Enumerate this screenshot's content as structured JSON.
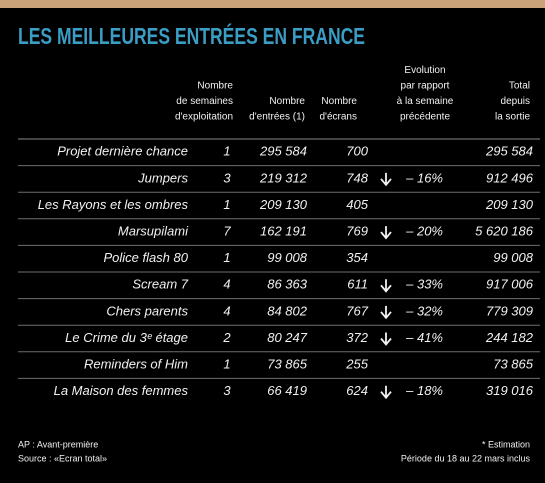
{
  "header": {
    "title": "LES MEILLEURES ENTRÉES EN FRANCE"
  },
  "table": {
    "columns": [
      [
        "Nombre",
        "de semaines",
        "d'exploitation"
      ],
      [
        "Nombre",
        "d'entrées (1)"
      ],
      [
        "Nombre",
        "d'écrans"
      ],
      [
        "Evolution",
        "par rapport",
        "à la semaine",
        "précédente"
      ],
      [
        "Total",
        "depuis",
        "la sortie"
      ]
    ],
    "rows": [
      {
        "title": "Projet dernière chance",
        "weeks": "1",
        "entries": "295 584",
        "screens": "700",
        "total": "295 584"
      },
      {
        "title": "Jumpers",
        "weeks": "3",
        "entries": "219 312",
        "screens": "748",
        "evolution": "– 16%",
        "total": "912 496"
      },
      {
        "title": "Les Rayons et les ombres",
        "weeks": "1",
        "entries": "209 130",
        "screens": "405",
        "total": "209 130"
      },
      {
        "title": "Marsupilami",
        "weeks": "7",
        "entries": "162 191",
        "screens": "769",
        "evolution": "– 20%",
        "total": "5 620 186"
      },
      {
        "title": "Police flash 80",
        "weeks": "1",
        "entries": "99 008",
        "screens": "354",
        "total": "99 008"
      },
      {
        "title": "Scream 7",
        "weeks": "4",
        "entries": "86 363",
        "screens": "611",
        "evolution": "– 33%",
        "total": "917 006"
      },
      {
        "title": "Chers parents",
        "weeks": "4",
        "entries": "84 802",
        "screens": "767",
        "evolution": "– 32%",
        "total": "779 309"
      },
      {
        "title": "Le Crime du 3ᵉ étage",
        "weeks": "2",
        "entries": "80 247",
        "screens": "372",
        "evolution": "– 41%",
        "total": "244 182"
      },
      {
        "title": "Reminders of Him",
        "weeks": "1",
        "entries": "73 865",
        "screens": "255",
        "total": "73 865"
      },
      {
        "title": "La Maison des femmes",
        "weeks": "3",
        "entries": "66 419",
        "screens": "624",
        "evolution": "– 18%",
        "total": "319 016"
      }
    ]
  },
  "footer": {
    "left": [
      "AP : Avant-première",
      "Source : «Ecran total»"
    ],
    "right": [
      "* Estimation",
      "Période du 18 au 22 mars inclus"
    ]
  }
}
